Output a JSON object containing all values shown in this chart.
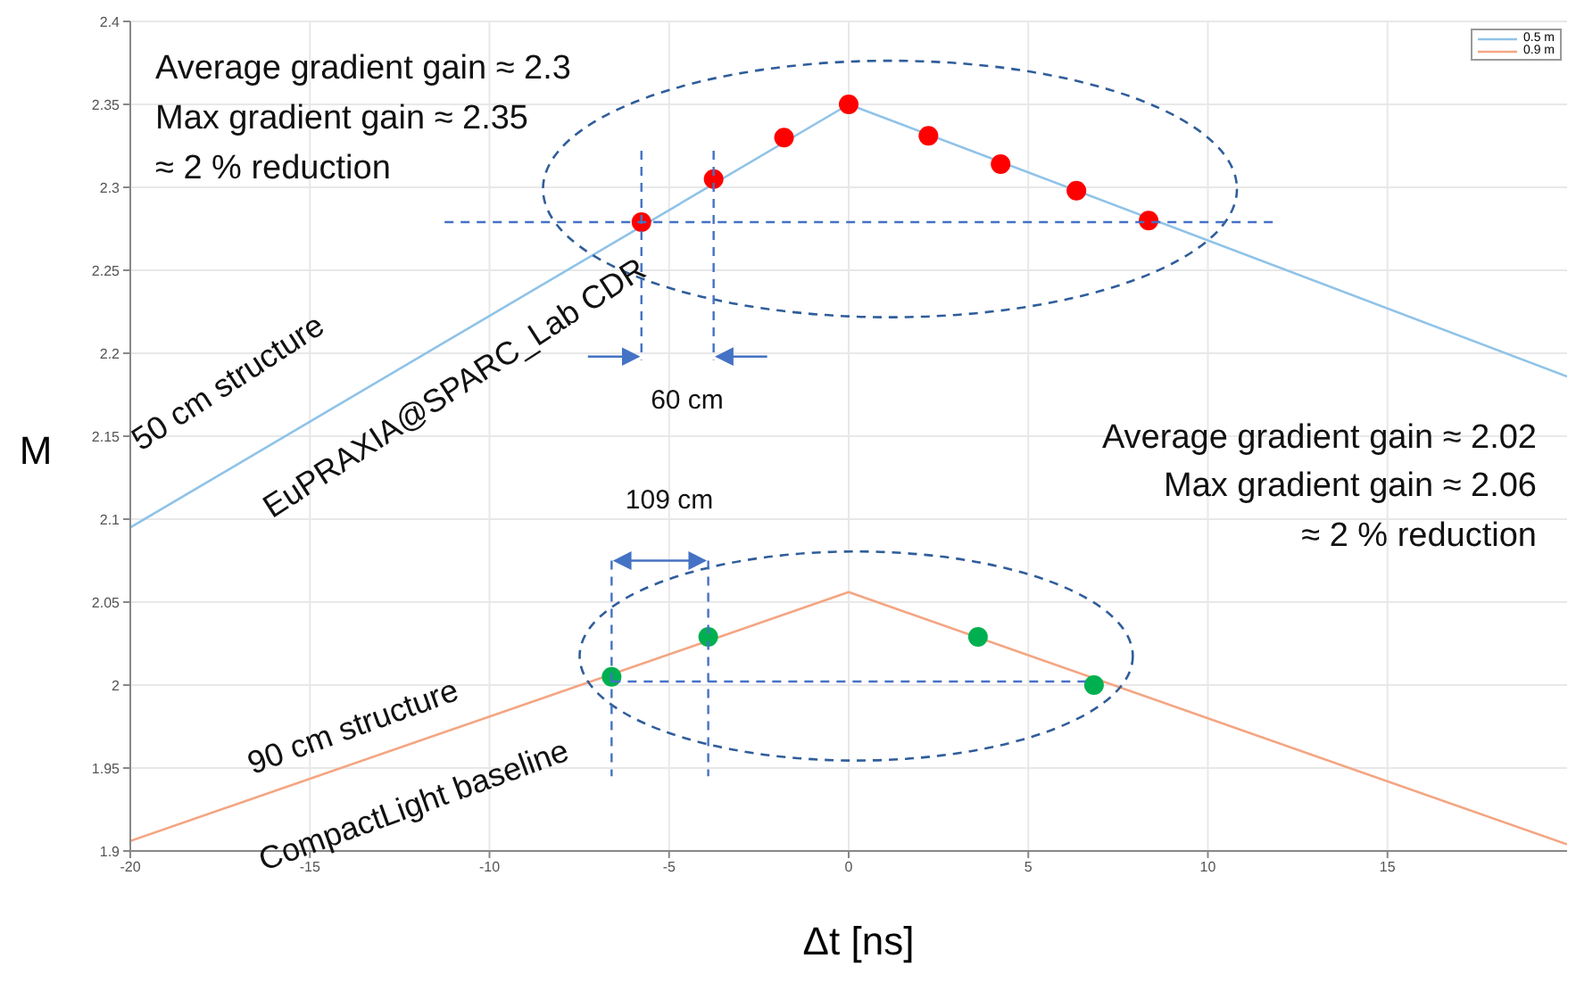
{
  "chart_data": {
    "type": "line",
    "xlabel": "Δt [ns]",
    "ylabel": "M",
    "xlim": [
      -20,
      20
    ],
    "xticks": [
      -20,
      -15,
      -10,
      -5,
      0,
      5,
      10,
      15
    ],
    "ylim": [
      1.9,
      2.4
    ],
    "yticks": [
      1.9,
      1.95,
      2,
      2.05,
      2.1,
      2.15,
      2.2,
      2.25,
      2.3,
      2.35,
      2.4
    ],
    "grid": true,
    "legend": "top right",
    "series": [
      {
        "name": "0.5 m",
        "color": "#8fc3e8",
        "x": [
          -20,
          0,
          20
        ],
        "values": [
          2.095,
          2.35,
          2.186
        ]
      },
      {
        "name": "0.9 m",
        "color": "#f4a582",
        "x": [
          -20,
          0,
          20
        ],
        "values": [
          1.906,
          2.056,
          1.904
        ]
      },
      {
        "type": "scatter",
        "marker": "circle",
        "color": "#ff0000",
        "x": [
          -5.77,
          -3.76,
          -1.8,
          0,
          2.22,
          4.23,
          6.34,
          8.35
        ],
        "values": [
          2.279,
          2.305,
          2.33,
          2.35,
          2.331,
          2.314,
          2.298,
          2.28
        ]
      },
      {
        "type": "scatter",
        "marker": "circle",
        "color": "#00b050",
        "x": [
          -6.6,
          -3.91,
          3.6,
          6.83
        ],
        "values": [
          2.005,
          2.029,
          2.029,
          2.0
        ]
      }
    ],
    "annotations": [
      "Average gradient gain ≈ 2.3",
      "Max gradient gain ≈ 2.35",
      "≈ 2 % reduction",
      "50 cm structure",
      "EuPRAXIA@SPARC_Lab CDR",
      "60 cm",
      "Average gradient gain ≈ 2.02",
      "Max gradient gain ≈ 2.06",
      "≈ 2 % reduction",
      "109 cm",
      "90 cm structure",
      "CompactLight baseline"
    ]
  }
}
